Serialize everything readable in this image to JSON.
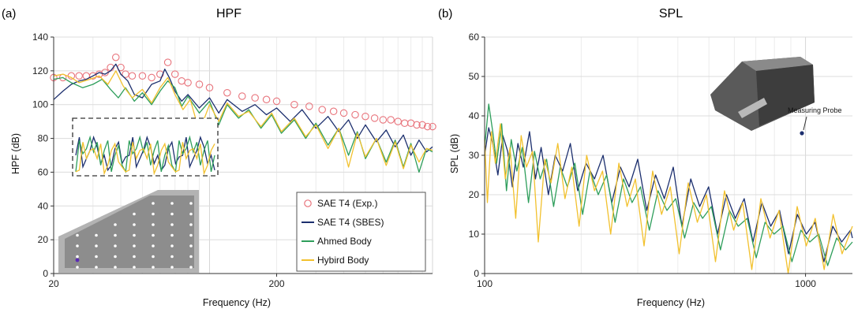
{
  "chart_data": [
    {
      "type": "line",
      "panel": "(a)",
      "title": "HPF",
      "xlabel": "Frequency (Hz)",
      "ylabel": "HPF (dB)",
      "xscale": "log",
      "xlim": [
        20,
        1000
      ],
      "ylim": [
        0,
        140
      ],
      "xticks": [
        20,
        200
      ],
      "yticks": [
        0,
        20,
        40,
        60,
        80,
        100,
        120,
        140
      ],
      "grid": true,
      "legend_position": "bottom-right",
      "series": [
        {
          "name": "SAE T4 (Exp.)",
          "marker": "open-circle",
          "color": "#e8747c",
          "x": [
            20,
            22,
            24,
            26,
            28,
            30,
            32,
            34,
            36,
            38,
            40,
            42,
            45,
            50,
            55,
            60,
            65,
            70,
            75,
            80,
            90,
            100,
            120,
            140,
            160,
            180,
            200,
            240,
            280,
            320,
            360,
            400,
            450,
            500,
            550,
            600,
            650,
            700,
            750,
            800,
            850,
            900,
            950,
            1000
          ],
          "y": [
            116,
            116,
            117,
            117,
            117,
            117,
            118,
            119,
            122,
            128,
            122,
            118,
            117,
            117,
            116,
            118,
            125,
            118,
            114,
            113,
            112,
            110,
            107,
            105,
            104,
            103,
            102,
            100,
            99,
            97,
            96,
            95,
            94,
            93,
            92,
            91,
            91,
            90,
            89,
            89,
            88,
            88,
            87,
            87
          ]
        },
        {
          "name": "SAE T4 (SBES)",
          "color": "#1c2f6e",
          "x": [
            20,
            22,
            24,
            26,
            28,
            30,
            32,
            34,
            36,
            38,
            40,
            43,
            46,
            50,
            55,
            60,
            63,
            66,
            70,
            75,
            80,
            90,
            100,
            110,
            120,
            140,
            160,
            180,
            200,
            230,
            260,
            300,
            340,
            380,
            420,
            460,
            500,
            560,
            620,
            680,
            740,
            800,
            870,
            940,
            1000
          ],
          "y": [
            103,
            108,
            112,
            114,
            115,
            117,
            119,
            118,
            120,
            124,
            118,
            114,
            106,
            104,
            112,
            114,
            121,
            116,
            108,
            102,
            106,
            98,
            104,
            95,
            103,
            96,
            100,
            94,
            98,
            90,
            97,
            86,
            93,
            84,
            91,
            80,
            88,
            78,
            85,
            75,
            82,
            70,
            79,
            72,
            75
          ]
        },
        {
          "name": "Ahmed Body",
          "color": "#2e9e5b",
          "x": [
            20,
            22,
            24,
            27,
            30,
            33,
            36,
            39,
            42,
            46,
            50,
            55,
            60,
            65,
            70,
            75,
            80,
            90,
            100,
            110,
            120,
            135,
            150,
            170,
            190,
            210,
            240,
            270,
            300,
            340,
            380,
            420,
            460,
            500,
            560,
            620,
            680,
            740,
            800,
            870,
            940,
            1000
          ],
          "y": [
            115,
            116,
            113,
            110,
            112,
            115,
            109,
            104,
            110,
            102,
            107,
            100,
            108,
            114,
            110,
            99,
            105,
            95,
            102,
            88,
            100,
            92,
            97,
            86,
            94,
            83,
            91,
            80,
            89,
            76,
            86,
            70,
            84,
            68,
            80,
            66,
            79,
            63,
            77,
            60,
            74,
            72
          ]
        },
        {
          "name": "Hybird Body",
          "color": "#f2c12e",
          "x": [
            20,
            22,
            24,
            26,
            29,
            32,
            35,
            38,
            41,
            45,
            50,
            55,
            60,
            65,
            70,
            76,
            82,
            90,
            100,
            110,
            120,
            135,
            150,
            170,
            190,
            210,
            240,
            270,
            300,
            340,
            380,
            420,
            460,
            500,
            560,
            620,
            680,
            740,
            800,
            870,
            940,
            1000
          ],
          "y": [
            117,
            118,
            116,
            113,
            115,
            117,
            112,
            120,
            111,
            104,
            109,
            101,
            110,
            116,
            106,
            97,
            103,
            84,
            100,
            90,
            101,
            93,
            96,
            87,
            95,
            84,
            92,
            81,
            88,
            74,
            86,
            63,
            83,
            69,
            80,
            64,
            78,
            62,
            76,
            66,
            74,
            73
          ]
        }
      ]
    },
    {
      "type": "line",
      "panel": "(b)",
      "title": "SPL",
      "xlabel": "Frequency (Hz)",
      "ylabel": "SPL (dB)",
      "xscale": "log",
      "xlim": [
        100,
        1400
      ],
      "ylim": [
        0,
        60
      ],
      "xticks": [
        100,
        1000
      ],
      "yticks": [
        0,
        10,
        20,
        30,
        40,
        50,
        60
      ],
      "grid": true,
      "annotation": "Measuring Probe",
      "series": [
        {
          "color": "#1c2f6e",
          "x": [
            100,
            103,
            106,
            110,
            114,
            118,
            122,
            127,
            132,
            138,
            144,
            150,
            158,
            166,
            175,
            185,
            195,
            207,
            220,
            234,
            249,
            265,
            282,
            300,
            320,
            341,
            363,
            387,
            412,
            439,
            468,
            499,
            532,
            567,
            604,
            644,
            686,
            731,
            779,
            830,
            885,
            943,
            1005,
            1071,
            1141,
            1216,
            1296,
            1381,
            1400
          ],
          "y": [
            30,
            37,
            33,
            25,
            35,
            31,
            22,
            33,
            27,
            36,
            24,
            32,
            20,
            30,
            26,
            33,
            21,
            28,
            24,
            30,
            18,
            27,
            22,
            29,
            16,
            25,
            19,
            27,
            12,
            24,
            17,
            22,
            10,
            20,
            14,
            19,
            8,
            18,
            12,
            16,
            5,
            15,
            10,
            13,
            3,
            12,
            8,
            11,
            9
          ]
        },
        {
          "color": "#2e9e5b",
          "x": [
            100,
            103,
            106,
            109,
            113,
            117,
            121,
            126,
            131,
            137,
            143,
            149,
            156,
            164,
            172,
            181,
            191,
            202,
            213,
            226,
            240,
            255,
            271,
            288,
            306,
            326,
            347,
            370,
            394,
            420,
            448,
            478,
            509,
            543,
            579,
            617,
            658,
            702,
            748,
            798,
            851,
            907,
            967,
            1031,
            1099,
            1172,
            1250,
            1333,
            1400
          ],
          "y": [
            32,
            43,
            36,
            28,
            38,
            21,
            34,
            26,
            32,
            18,
            31,
            24,
            29,
            17,
            27,
            22,
            28,
            15,
            26,
            20,
            25,
            13,
            24,
            18,
            22,
            11,
            21,
            16,
            19,
            9,
            18,
            14,
            17,
            6,
            16,
            12,
            14,
            4,
            13,
            10,
            12,
            3,
            11,
            8,
            10,
            2,
            9,
            6,
            8
          ]
        },
        {
          "color": "#f2c12e",
          "x": [
            100,
            102,
            105,
            108,
            112,
            116,
            120,
            125,
            130,
            135,
            141,
            147,
            154,
            161,
            169,
            178,
            187,
            197,
            208,
            220,
            233,
            247,
            262,
            278,
            295,
            314,
            334,
            356,
            379,
            404,
            431,
            460,
            491,
            524,
            559,
            597,
            637,
            680,
            726,
            775,
            827,
            883,
            942,
            1005,
            1072,
            1143,
            1219,
            1300,
            1400
          ],
          "y": [
            34,
            18,
            36,
            28,
            38,
            24,
            32,
            14,
            35,
            27,
            31,
            8,
            29,
            23,
            33,
            19,
            27,
            12,
            30,
            21,
            26,
            10,
            28,
            17,
            24,
            7,
            26,
            15,
            22,
            5,
            23,
            13,
            20,
            3,
            21,
            11,
            18,
            1,
            19,
            9,
            16,
            0,
            17,
            7,
            14,
            1,
            15,
            5,
            12
          ]
        }
      ]
    }
  ]
}
